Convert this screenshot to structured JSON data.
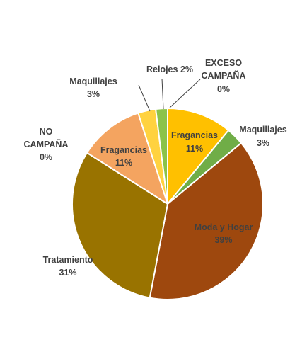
{
  "chart_data": {
    "type": "pie",
    "start_angle_deg": 0,
    "slices": [
      {
        "label": "Fragancias",
        "value_label": "11%",
        "value": 11,
        "color": "#FFC000"
      },
      {
        "label": "Maquillajes",
        "value_label": "3%",
        "value": 3,
        "color": "#70AD47"
      },
      {
        "label": "Moda y Hogar",
        "value_label": "39%",
        "value": 39,
        "color": "#9E480E"
      },
      {
        "label": "Tratamiento",
        "value_label": "31%",
        "value": 31,
        "color": "#997300"
      },
      {
        "label": "NO CAMPAÑA",
        "value_label": "0%",
        "value": 0,
        "color": "#C55A11"
      },
      {
        "label": "Fragancias",
        "value_label": "11%",
        "value": 11,
        "color": "#F4A460"
      },
      {
        "label": "Maquillajes",
        "value_label": "3%",
        "value": 3,
        "color": "#FFD23F"
      },
      {
        "label": "Relojes",
        "value_label": "2%",
        "value": 2,
        "color": "#8BC34A"
      },
      {
        "label": "EXCESO CAMPAÑA",
        "value_label": "0%",
        "value": 0,
        "color": "#5B9BD5"
      }
    ]
  }
}
